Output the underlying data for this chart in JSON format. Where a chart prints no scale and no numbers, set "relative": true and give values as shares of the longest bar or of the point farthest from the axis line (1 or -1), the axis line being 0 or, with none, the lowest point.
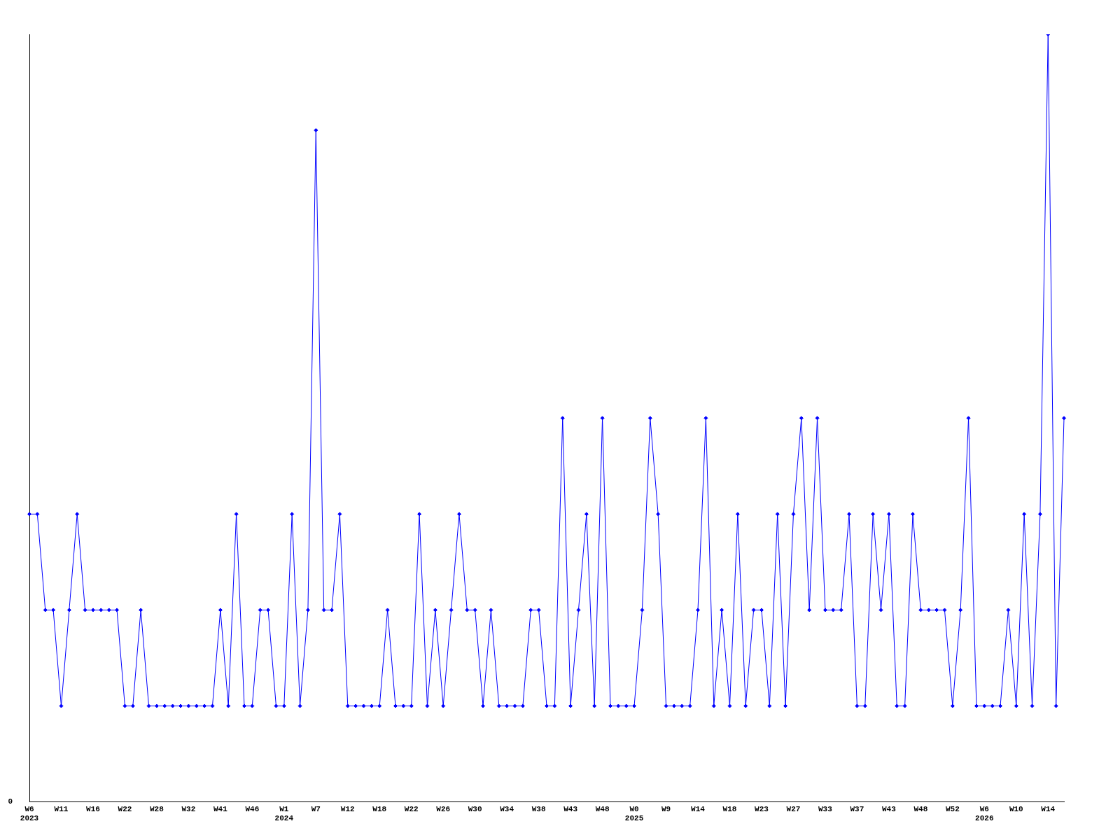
{
  "chart_data": {
    "type": "line",
    "relative": true,
    "categories": [
      "W6\n2023",
      null,
      null,
      null,
      "W11",
      null,
      null,
      null,
      "W16",
      null,
      null,
      null,
      "W22",
      null,
      null,
      null,
      "W28",
      null,
      null,
      null,
      "W32",
      null,
      null,
      null,
      "W41",
      null,
      null,
      null,
      "W46",
      null,
      null,
      null,
      "W1\n2024",
      null,
      null,
      null,
      "W7",
      null,
      null,
      null,
      "W12",
      null,
      null,
      null,
      "W18",
      null,
      null,
      null,
      "W22",
      null,
      null,
      null,
      "W26",
      null,
      null,
      null,
      "W30",
      null,
      null,
      null,
      "W34",
      null,
      null,
      null,
      "W38",
      null,
      null,
      null,
      "W43",
      null,
      null,
      null,
      "W48",
      null,
      null,
      null,
      "W0\n2025",
      null,
      null,
      null,
      "W9",
      null,
      null,
      null,
      "W14",
      null,
      null,
      null,
      "W18",
      null,
      null,
      null,
      "W23",
      null,
      null,
      null,
      "W27",
      null,
      null,
      null,
      "W33",
      null,
      null,
      null,
      "W37",
      null,
      null,
      null,
      "W43",
      null,
      null,
      null,
      "W48",
      null,
      null,
      null,
      "W52",
      null,
      null,
      null,
      "W6\n2026",
      null,
      null,
      null,
      "W10",
      null,
      null,
      null,
      "W14",
      null,
      null
    ],
    "series": [
      {
        "color": "#0000ff",
        "values": [
          0.375,
          0.375,
          0.25,
          0.25,
          0.125,
          0.25,
          0.375,
          0.25,
          0.25,
          0.25,
          0.25,
          0.25,
          0.125,
          0.125,
          0.25,
          0.125,
          0.125,
          0.125,
          0.125,
          0.125,
          0.125,
          0.125,
          0.125,
          0.125,
          0.25,
          0.125,
          0.375,
          0.125,
          0.125,
          0.25,
          0.25,
          0.125,
          0.125,
          0.375,
          0.125,
          0.25,
          0.875,
          0.25,
          0.25,
          0.375,
          0.125,
          0.125,
          0.125,
          0.125,
          0.125,
          0.25,
          0.125,
          0.125,
          0.125,
          0.375,
          0.125,
          0.25,
          0.125,
          0.25,
          0.375,
          0.25,
          0.25,
          0.125,
          0.25,
          0.125,
          0.125,
          0.125,
          0.125,
          0.25,
          0.25,
          0.125,
          0.125,
          0.5,
          0.125,
          0.25,
          0.375,
          0.125,
          0.5,
          0.125,
          0.125,
          0.125,
          0.125,
          0.25,
          0.5,
          0.375,
          0.125,
          0.125,
          0.125,
          0.125,
          0.25,
          0.5,
          0.125,
          0.25,
          0.125,
          0.375,
          0.125,
          0.25,
          0.25,
          0.125,
          0.375,
          0.125,
          0.375,
          0.5,
          0.25,
          0.5,
          0.25,
          0.25,
          0.25,
          0.375,
          0.125,
          0.125,
          0.375,
          0.25,
          0.375,
          0.125,
          0.125,
          0.375,
          0.25,
          0.25,
          0.25,
          0.25,
          0.125,
          0.25,
          0.5,
          0.125,
          0.125,
          0.125,
          0.125,
          0.25,
          0.125,
          0.375,
          0.125,
          0.375,
          1,
          0.125,
          0.5
        ]
      }
    ],
    "annotations": [
      "0"
    ],
    "marker": "diamond",
    "line_style": "solid",
    "grid": false,
    "legend": false
  }
}
